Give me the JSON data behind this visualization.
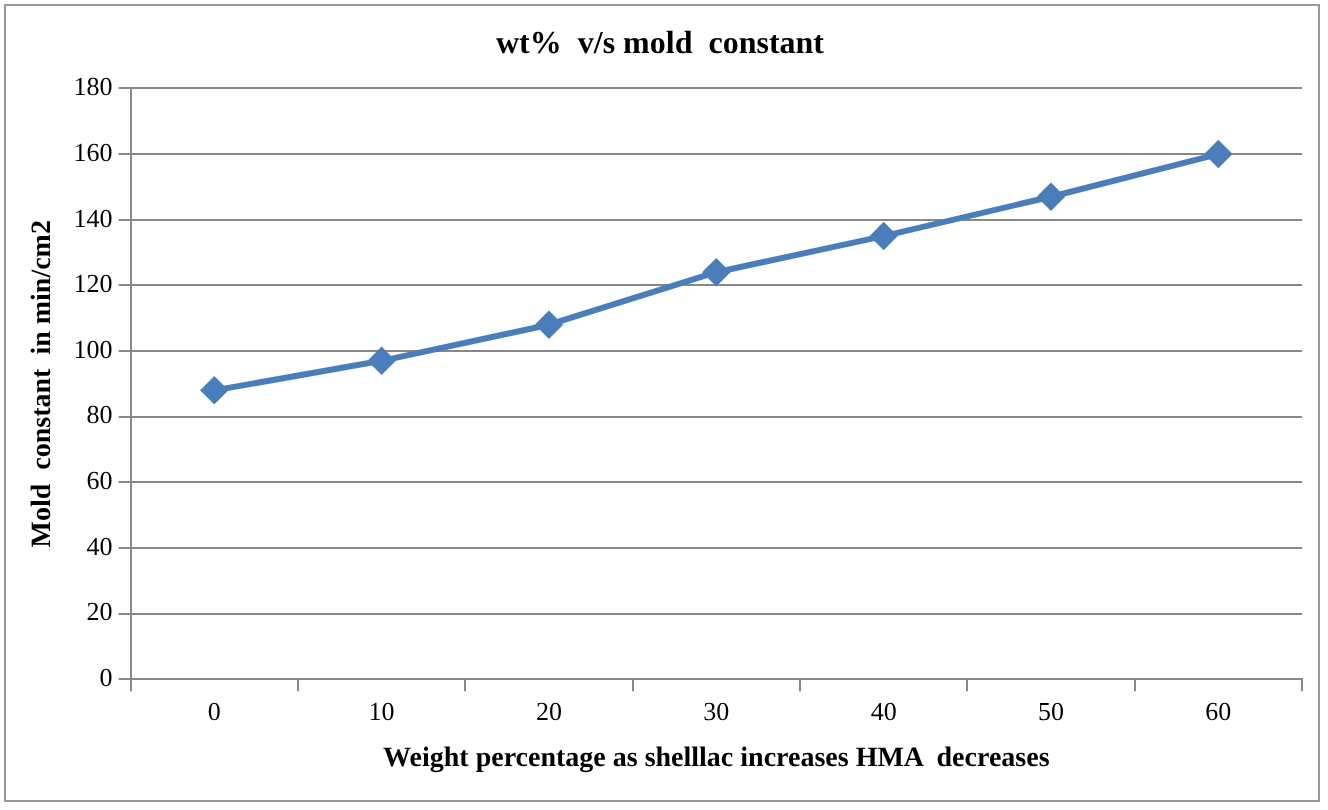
{
  "chart_data": {
    "type": "line",
    "title": "wt%  v/s mold  constant",
    "xlabel": "Weight percentage as shelllac increases HMA  decreases",
    "ylabel": "Mold  constant  in min/cm2",
    "categories": [
      "0",
      "10",
      "20",
      "30",
      "40",
      "50",
      "60"
    ],
    "series": [
      {
        "color": "#4a7ebb",
        "values": [
          88,
          97,
          108,
          124,
          135,
          147,
          160
        ]
      }
    ],
    "ylim": [
      0,
      180
    ],
    "yticks": [
      0,
      20,
      40,
      60,
      80,
      100,
      120,
      140,
      160,
      180
    ],
    "grid": "y",
    "legend": false,
    "marker": "diamond",
    "line_style": "solid"
  }
}
